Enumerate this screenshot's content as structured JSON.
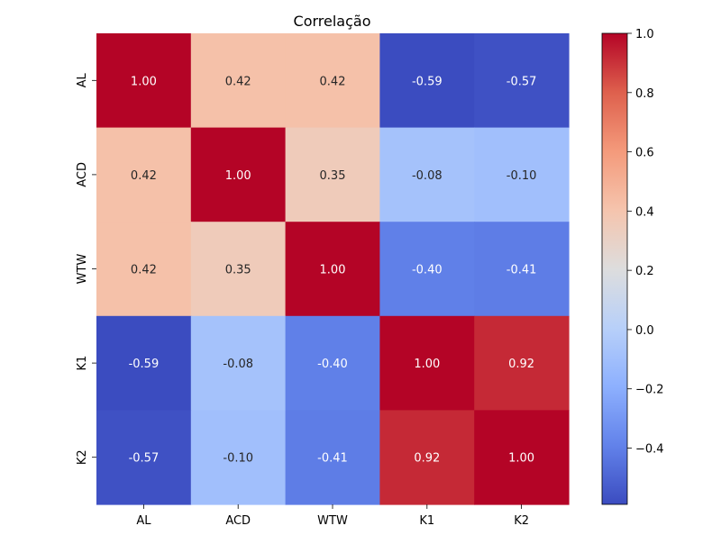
{
  "chart_data": {
    "type": "heatmap",
    "title": "Correlação",
    "x_labels": [
      "AL",
      "ACD",
      "WTW",
      "K1",
      "K2"
    ],
    "y_labels": [
      "AL",
      "ACD",
      "WTW",
      "K1",
      "K2"
    ],
    "matrix": [
      [
        1.0,
        0.42,
        0.42,
        -0.59,
        -0.57
      ],
      [
        0.42,
        1.0,
        0.35,
        -0.08,
        -0.1
      ],
      [
        0.42,
        0.35,
        1.0,
        -0.4,
        -0.41
      ],
      [
        -0.59,
        -0.08,
        -0.4,
        1.0,
        0.92
      ],
      [
        -0.57,
        -0.1,
        -0.41,
        0.92,
        1.0
      ]
    ],
    "annotations": [
      [
        "1.00",
        "0.42",
        "0.42",
        "-0.59",
        "-0.57"
      ],
      [
        "0.42",
        "1.00",
        "0.35",
        "-0.08",
        "-0.10"
      ],
      [
        "0.42",
        "0.35",
        "1.00",
        "-0.40",
        "-0.41"
      ],
      [
        "-0.59",
        "-0.08",
        "-0.40",
        "1.00",
        "0.92"
      ],
      [
        "-0.57",
        "-0.10",
        "-0.41",
        "0.92",
        "1.00"
      ]
    ],
    "colormap": "coolwarm",
    "vmin": -0.59,
    "vmax": 1.0,
    "colorbar_ticks": [
      1.0,
      0.8,
      0.6,
      0.4,
      0.2,
      0.0,
      -0.2,
      -0.4
    ],
    "colorbar_tick_labels": [
      "1.0",
      "0.8",
      "0.6",
      "0.4",
      "0.2",
      "0.0",
      "−0.2",
      "−0.4"
    ],
    "grid": false,
    "legend": "colorbar-right"
  }
}
